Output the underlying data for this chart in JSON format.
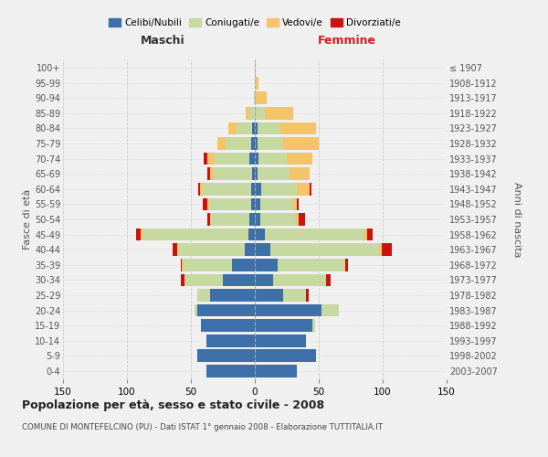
{
  "age_groups": [
    "0-4",
    "5-9",
    "10-14",
    "15-19",
    "20-24",
    "25-29",
    "30-34",
    "35-39",
    "40-44",
    "45-49",
    "50-54",
    "55-59",
    "60-64",
    "65-69",
    "70-74",
    "75-79",
    "80-84",
    "85-89",
    "90-94",
    "95-99",
    "100+"
  ],
  "birth_years": [
    "2003-2007",
    "1998-2002",
    "1993-1997",
    "1988-1992",
    "1983-1987",
    "1978-1982",
    "1973-1977",
    "1968-1972",
    "1963-1967",
    "1958-1962",
    "1953-1957",
    "1948-1952",
    "1943-1947",
    "1938-1942",
    "1933-1937",
    "1928-1932",
    "1923-1927",
    "1918-1922",
    "1913-1917",
    "1908-1912",
    "≤ 1907"
  ],
  "colors": {
    "celibi": "#3d6fa8",
    "coniugati": "#c5d9a0",
    "vedovi": "#f5c469",
    "divorziati": "#cc1111"
  },
  "males": {
    "celibi": [
      38,
      45,
      38,
      42,
      45,
      35,
      25,
      18,
      8,
      5,
      4,
      3,
      3,
      2,
      4,
      3,
      2,
      0,
      0,
      0,
      0
    ],
    "coniugati": [
      0,
      0,
      0,
      0,
      2,
      10,
      30,
      38,
      52,
      83,
      30,
      33,
      38,
      30,
      28,
      20,
      12,
      4,
      1,
      0,
      0
    ],
    "vedovi": [
      0,
      0,
      0,
      0,
      0,
      0,
      0,
      1,
      1,
      1,
      1,
      1,
      2,
      3,
      5,
      6,
      7,
      3,
      0,
      0,
      0
    ],
    "divorziati": [
      0,
      0,
      0,
      0,
      0,
      0,
      3,
      1,
      3,
      4,
      2,
      4,
      1,
      2,
      3,
      0,
      0,
      0,
      0,
      0,
      0
    ]
  },
  "females": {
    "celibi": [
      33,
      48,
      40,
      45,
      52,
      22,
      14,
      18,
      12,
      8,
      4,
      4,
      5,
      2,
      3,
      2,
      2,
      0,
      0,
      0,
      0
    ],
    "coniugati": [
      0,
      0,
      0,
      2,
      14,
      18,
      42,
      52,
      85,
      78,
      28,
      26,
      28,
      25,
      22,
      20,
      18,
      8,
      1,
      1,
      0
    ],
    "vedovi": [
      0,
      0,
      0,
      0,
      0,
      0,
      0,
      1,
      2,
      2,
      2,
      3,
      10,
      16,
      20,
      28,
      28,
      22,
      8,
      2,
      1
    ],
    "divorziati": [
      0,
      0,
      0,
      0,
      0,
      2,
      3,
      2,
      8,
      4,
      5,
      1,
      1,
      0,
      0,
      0,
      0,
      0,
      0,
      0,
      0
    ]
  },
  "title": "Popolazione per età, sesso e stato civile - 2008",
  "subtitle": "COMUNE DI MONTEFELCINO (PU) - Dati ISTAT 1° gennaio 2008 - Elaborazione TUTTITALIA.IT",
  "xlabel_left": "Maschi",
  "xlabel_right": "Femmine",
  "ylabel_left": "Fasce di età",
  "ylabel_right": "Anni di nascita",
  "xlim": 150,
  "bg_color": "#f0f0f0",
  "grid_color": "#cccccc"
}
